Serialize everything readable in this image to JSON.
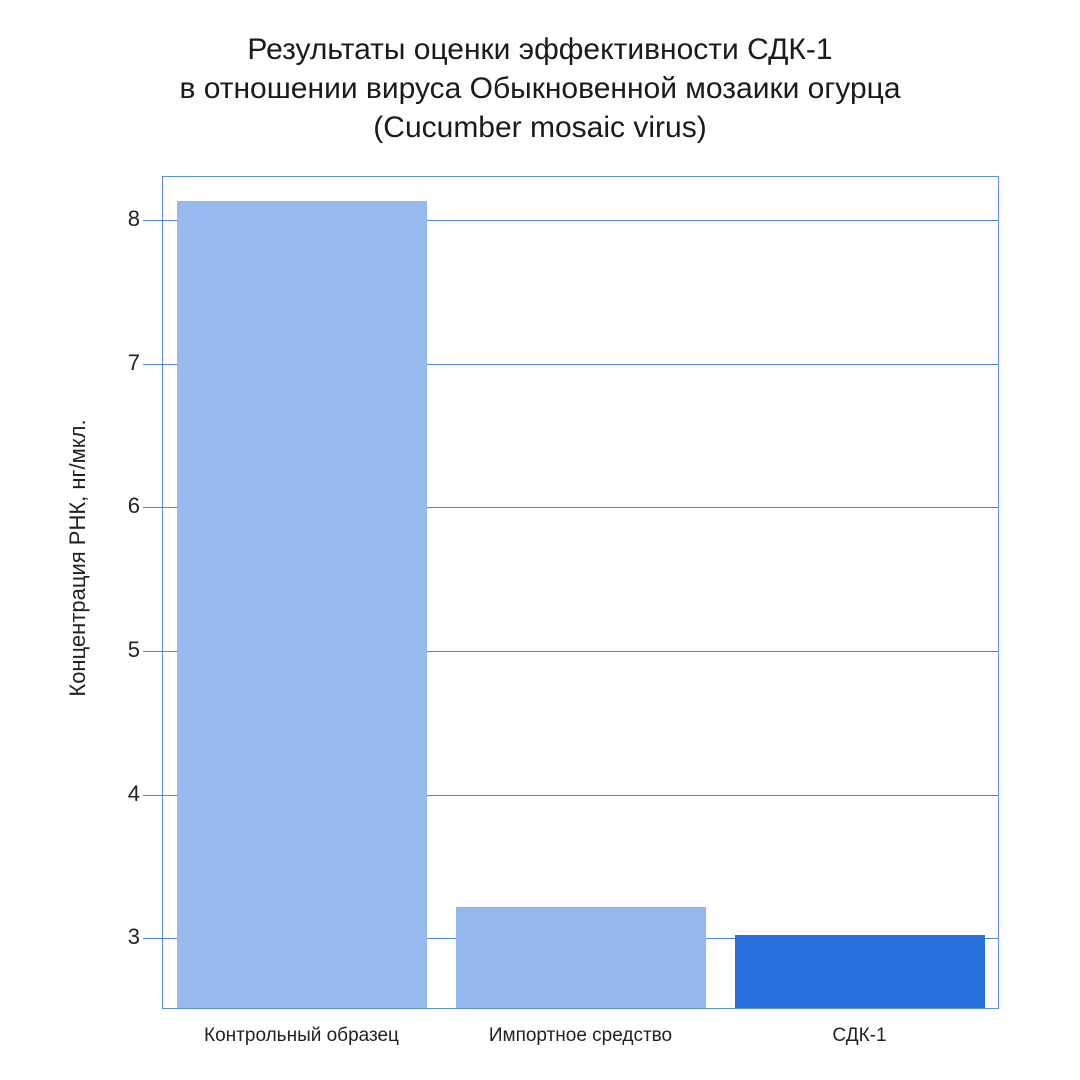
{
  "title_lines": [
    "Результаты оценки эффективности СДК-1",
    "в отношении вируса Обыкновенной мозаики огурца",
    "(Cucumber mosaic virus)"
  ],
  "chart_data": {
    "type": "bar",
    "title": "Результаты оценки эффективности СДК-1 в отношении вируса Обыкновенной мозаики огурца (Cucumber mosaic virus)",
    "categories": [
      "Контрольный образец",
      "Импортное средство",
      "СДК-1"
    ],
    "values": [
      8.12,
      3.2,
      3.01
    ],
    "colors": [
      "#97b9ee",
      "#94b7ec",
      "#2871dd"
    ],
    "xlabel": "",
    "ylabel": "Концентрация РНК, нг/мкл.",
    "ylim": [
      2.5,
      8.3
    ],
    "yticks": [
      3,
      4,
      5,
      6,
      7,
      8
    ],
    "grid": true,
    "legend": null
  }
}
